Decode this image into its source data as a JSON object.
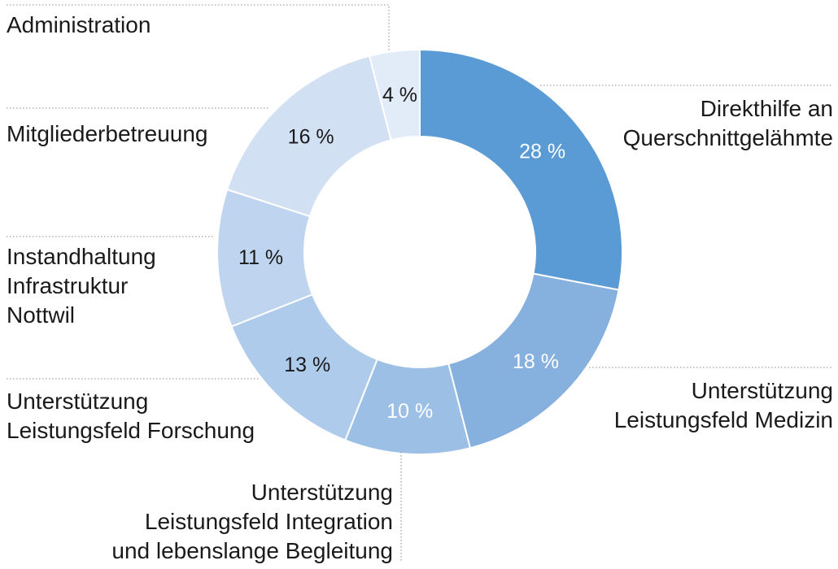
{
  "chart_data": {
    "type": "pie",
    "donut": true,
    "categories": [
      "Direkthilfe an Querschnittgelähmte",
      "Unterstützung Leistungsfeld Medizin",
      "Unterstützung Leistungsfeld Integration und lebenslange Begleitung",
      "Unterstützung Leistungsfeld Forschung",
      "Instandhaltung Infrastruktur Nottwil",
      "Mitgliederbetreuung",
      "Administration"
    ],
    "values": [
      28,
      18,
      10,
      13,
      11,
      16,
      4
    ],
    "value_labels": [
      "28 %",
      "18 %",
      "10 %",
      "13 %",
      "11 %",
      "16 %",
      "4 %"
    ],
    "label_lines": [
      [
        "Direkthilfe an",
        "Querschnittgelähmte"
      ],
      [
        "Unterstützung",
        "Leistungsfeld Medizin"
      ],
      [
        "Unterstützung",
        "Leistungsfeld Integration",
        "und lebenslange Begleitung"
      ],
      [
        "Unterstützung",
        "Leistungsfeld Forschung"
      ],
      [
        "Instandhaltung",
        "Infrastruktur",
        "Nottwil"
      ],
      [
        "Mitgliederbetreuung"
      ],
      [
        "Administration"
      ]
    ],
    "colors": [
      "#5b9bd5",
      "#86b0de",
      "#9cbfe6",
      "#afcbeb",
      "#bfd4ef",
      "#d2e0f3",
      "#e2ebf8"
    ],
    "value_label_colors": [
      "#ffffff",
      "#ffffff",
      "#ffffff",
      "#1a1a1a",
      "#1a1a1a",
      "#1a1a1a",
      "#1a1a1a"
    ],
    "title": "",
    "legend": "none"
  }
}
